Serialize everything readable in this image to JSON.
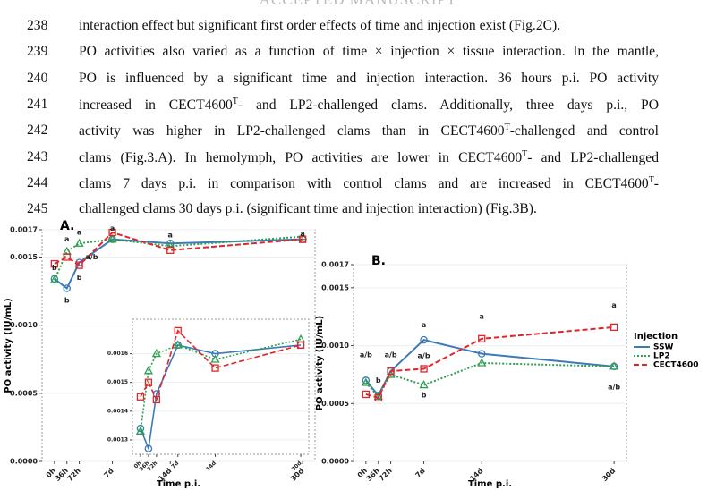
{
  "header": "ACCEPTED MANUSCRIPT",
  "lines": [
    {
      "number": "238",
      "parts": [
        {
          "text": "interaction effect but significant first order effects of time and injection exist (Fig.2C)."
        }
      ]
    },
    {
      "number": "239",
      "parts": [
        {
          "text": "PO activities also varied as a function of time × injection × tissue interaction. In the mantle,"
        }
      ]
    },
    {
      "number": "240",
      "parts": [
        {
          "text": "PO is influenced by a significant time and injection interaction. 36 hours p.i. PO activity"
        }
      ]
    },
    {
      "number": "241",
      "parts": [
        {
          "text": "increased in CECT4600"
        },
        {
          "sup": "T"
        },
        {
          "text": "- and LP2-challenged clams. Additionally, three days p.i., PO"
        }
      ]
    },
    {
      "number": "242",
      "parts": [
        {
          "text": "activity was higher in LP2-challenged clams than in CECT4600"
        },
        {
          "sup": "T"
        },
        {
          "text": "-challenged and control"
        }
      ]
    },
    {
      "number": "243",
      "parts": [
        {
          "text": "clams (Fig.3.A). In hemolymph, PO activities are lower in CECT4600"
        },
        {
          "sup": "T"
        },
        {
          "text": "- and LP2-challenged"
        }
      ]
    },
    {
      "number": "244",
      "parts": [
        {
          "text": "clams 7 days p.i. in comparison with control clams and are increased in CECT4600"
        },
        {
          "sup": "T"
        },
        {
          "text": "-"
        }
      ]
    },
    {
      "number": "245",
      "parts": [
        {
          "text": "challenged clams 30 days p.i. (significant time and injection interaction) (Fig.3B)."
        }
      ]
    }
  ],
  "chart_data": [
    {
      "type": "line",
      "panel": "A.",
      "ylabel": "PO activity (IU/mL)",
      "xlabel": "Time p.i.",
      "x": [
        0,
        1.5,
        3,
        7,
        14,
        30
      ],
      "xlim": [
        -1.5,
        31.5
      ],
      "xticks": [
        {
          "value": 0,
          "label": "0h"
        },
        {
          "value": 1.5,
          "label": "36h"
        },
        {
          "value": 3,
          "label": "72h"
        },
        {
          "value": 7,
          "label": "7d"
        },
        {
          "value": 14,
          "label": "14d"
        },
        {
          "value": 30,
          "label": "30d"
        }
      ],
      "ylim": [
        0,
        0.0017
      ],
      "yticks": [
        {
          "value": 0,
          "label": "0.0000"
        },
        0.0005,
        {
          "value": 0.001,
          "label": "0.0010"
        },
        0.0015,
        0.0017
      ],
      "series": [
        {
          "name": "SSW",
          "color": "#3d7ab8",
          "dash": "solid",
          "marker": "circle",
          "values": [
            0.00134,
            0.00127,
            0.00146,
            0.00163,
            0.0016,
            0.00163
          ]
        },
        {
          "name": "LP2",
          "color": "#2e9e4f",
          "dash": "dotted",
          "marker": "triangle",
          "values": [
            0.00133,
            0.00154,
            0.0016,
            0.00163,
            0.00158,
            0.00165
          ]
        },
        {
          "name": "CECT4600",
          "color": "#e0262a",
          "dash": "dashed",
          "marker": "square",
          "values": [
            0.00145,
            0.0015,
            0.00144,
            0.00168,
            0.00155,
            0.00163
          ]
        }
      ],
      "annotations": [
        {
          "text": "b",
          "x": 0,
          "y": 0.00142
        },
        {
          "text": "b",
          "x": 1.5,
          "y": 0.00118
        },
        {
          "text": "a",
          "x": 1.5,
          "y": 0.00163
        },
        {
          "text": "a",
          "x": 3,
          "y": 0.00168
        },
        {
          "text": "a/b",
          "x": 4.5,
          "y": 0.0015
        },
        {
          "text": "b",
          "x": 3,
          "y": 0.00135
        },
        {
          "text": "a",
          "x": 7,
          "y": 0.00171
        },
        {
          "text": "a",
          "x": 14,
          "y": 0.00166
        },
        {
          "text": "a",
          "x": 30,
          "y": 0.00167
        }
      ],
      "inset": {
        "xlim": [
          -1.5,
          31.5
        ],
        "ylim": [
          0.00125,
          0.00172
        ],
        "yticks": [
          0.0013,
          0.0014,
          0.0015,
          0.0016
        ]
      }
    },
    {
      "type": "line",
      "panel": "B.",
      "ylabel": "PO activity (IU/mL)",
      "xlabel": "Time p.i.",
      "x": [
        0,
        1.5,
        3,
        7,
        14,
        30
      ],
      "xlim": [
        -1.5,
        31.5
      ],
      "xticks": [
        {
          "value": 0,
          "label": "0h"
        },
        {
          "value": 1.5,
          "label": "36h"
        },
        {
          "value": 3,
          "label": "72h"
        },
        {
          "value": 7,
          "label": "7d"
        },
        {
          "value": 14,
          "label": "14d"
        },
        {
          "value": 30,
          "label": "30d"
        }
      ],
      "ylim": [
        0,
        0.0017
      ],
      "yticks": [
        {
          "value": 0,
          "label": "0.0000"
        },
        0.0005,
        {
          "value": 0.001,
          "label": "0.0010"
        },
        0.0015,
        0.0017
      ],
      "legend_title": "Injection",
      "legend": "right",
      "series": [
        {
          "name": "SSW",
          "color": "#3d7ab8",
          "dash": "solid",
          "marker": "circle",
          "values": [
            0.0007,
            0.00057,
            0.00078,
            0.00105,
            0.00093,
            0.00082
          ]
        },
        {
          "name": "LP2",
          "color": "#2e9e4f",
          "dash": "dotted",
          "marker": "triangle",
          "values": [
            0.00068,
            0.00056,
            0.00075,
            0.00066,
            0.00085,
            0.00082
          ]
        },
        {
          "name": "CECT4600",
          "color": "#e0262a",
          "dash": "dashed",
          "marker": "square",
          "values": [
            0.00058,
            0.00055,
            0.00078,
            0.0008,
            0.00106,
            0.00116
          ]
        }
      ],
      "annotations": [
        {
          "text": "a/b",
          "x": 0,
          "y": 0.00092
        },
        {
          "text": "b",
          "x": 1.5,
          "y": 0.0007
        },
        {
          "text": "a/b",
          "x": 3,
          "y": 0.00092
        },
        {
          "text": "a",
          "x": 7,
          "y": 0.00118
        },
        {
          "text": "a/b",
          "x": 7,
          "y": 0.00091
        },
        {
          "text": "b",
          "x": 7,
          "y": 0.00057
        },
        {
          "text": "a",
          "x": 14,
          "y": 0.00125
        },
        {
          "text": "a",
          "x": 30,
          "y": 0.00135
        },
        {
          "text": "a/b",
          "x": 30,
          "y": 0.00064
        }
      ]
    }
  ]
}
